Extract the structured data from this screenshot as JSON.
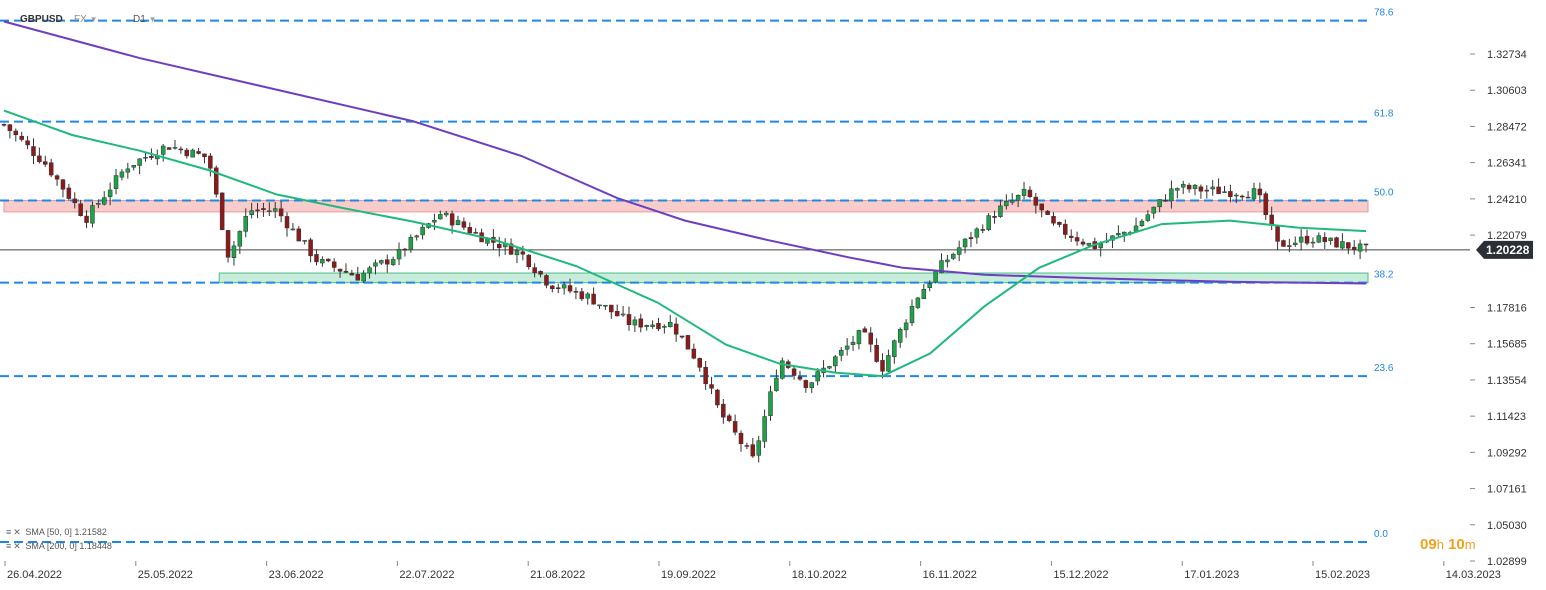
{
  "header": {
    "symbol": "GBPUSD",
    "market": "FX",
    "timeframe": "D1"
  },
  "indicators": [
    {
      "label": "SMA [50, 0]",
      "value": "1.21582",
      "color": "#1fb97d"
    },
    {
      "label": "SMA [200, 0]",
      "value": "1.18448",
      "color": "#6d3fc0"
    }
  ],
  "current_price": "1.20228",
  "timer": {
    "h": "09",
    "h_unit": "h",
    "m": "10",
    "m_unit": "m"
  },
  "colors": {
    "fib": "#1e88e5",
    "up": "#1fa14a",
    "down": "#8b1a1a",
    "resistance_zone": "#f9cccc",
    "support_zone": "#c7ecd9"
  },
  "chart_data": {
    "type": "candlestick",
    "y_ticks": [
      "1.32734",
      "1.30603",
      "1.28472",
      "1.26341",
      "1.24210",
      "1.22079",
      "1.20228",
      "1.17816",
      "1.15685",
      "1.13554",
      "1.11423",
      "1.09292",
      "1.07161",
      "1.05030",
      "1.02899"
    ],
    "x_ticks": [
      "26.04.2022",
      "25.05.2022",
      "23.06.2022",
      "22.07.2022",
      "21.08.2022",
      "19.09.2022",
      "18.10.2022",
      "16.11.2022",
      "15.12.2022",
      "17.01.2023",
      "15.02.2023",
      "14.03.2023"
    ],
    "ylim": [
      1.027,
      1.335
    ],
    "fib_levels": [
      {
        "label": "78.6",
        "price": 1.3335
      },
      {
        "label": "61.8",
        "price": 1.2757
      },
      {
        "label": "50.0",
        "price": 1.2305
      },
      {
        "label": "38.2",
        "price": 1.1835
      },
      {
        "label": "23.6",
        "price": 1.13
      },
      {
        "label": "0.0",
        "price": 1.035
      }
    ],
    "zones": [
      {
        "name": "resistance",
        "price_low": 1.224,
        "price_high": 1.2305,
        "start": 0,
        "end": 1368
      },
      {
        "name": "support",
        "price_low": 1.1835,
        "price_high": 1.189,
        "start": 0.158,
        "end": 1368
      }
    ],
    "current_price": 1.20228,
    "sma50": [
      [
        0.0,
        1.282
      ],
      [
        0.05,
        1.268
      ],
      [
        0.1,
        1.259
      ],
      [
        0.15,
        1.248
      ],
      [
        0.2,
        1.234
      ],
      [
        0.25,
        1.226
      ],
      [
        0.3,
        1.2185
      ],
      [
        0.36,
        1.208
      ],
      [
        0.42,
        1.193
      ],
      [
        0.48,
        1.172
      ],
      [
        0.53,
        1.148
      ],
      [
        0.57,
        1.137
      ],
      [
        0.61,
        1.132
      ],
      [
        0.645,
        1.13
      ],
      [
        0.68,
        1.143
      ],
      [
        0.72,
        1.17
      ],
      [
        0.76,
        1.192
      ],
      [
        0.8,
        1.205
      ],
      [
        0.85,
        1.217
      ],
      [
        0.9,
        1.219
      ],
      [
        0.95,
        1.215
      ],
      [
        1.0,
        1.213
      ]
    ],
    "sma200": [
      [
        0.0,
        1.333
      ],
      [
        0.1,
        1.312
      ],
      [
        0.2,
        1.294
      ],
      [
        0.3,
        1.276
      ],
      [
        0.38,
        1.256
      ],
      [
        0.45,
        1.232
      ],
      [
        0.5,
        1.219
      ],
      [
        0.56,
        1.208
      ],
      [
        0.62,
        1.198
      ],
      [
        0.66,
        1.192
      ],
      [
        0.72,
        1.188
      ],
      [
        0.8,
        1.186
      ],
      [
        0.9,
        1.184
      ],
      [
        1.0,
        1.183
      ]
    ],
    "price_path": [
      [
        0.0,
        1.274
      ],
      [
        0.03,
        1.252
      ],
      [
        0.06,
        1.22
      ],
      [
        0.09,
        1.25
      ],
      [
        0.12,
        1.262
      ],
      [
        0.15,
        1.255
      ],
      [
        0.165,
        1.198
      ],
      [
        0.18,
        1.225
      ],
      [
        0.2,
        1.225
      ],
      [
        0.23,
        1.196
      ],
      [
        0.26,
        1.187
      ],
      [
        0.29,
        1.2
      ],
      [
        0.32,
        1.223
      ],
      [
        0.35,
        1.21
      ],
      [
        0.38,
        1.2
      ],
      [
        0.4,
        1.183
      ],
      [
        0.43,
        1.175
      ],
      [
        0.46,
        1.16
      ],
      [
        0.49,
        1.16
      ],
      [
        0.51,
        1.138
      ],
      [
        0.525,
        1.11
      ],
      [
        0.55,
        1.082
      ],
      [
        0.57,
        1.14
      ],
      [
        0.59,
        1.125
      ],
      [
        0.61,
        1.14
      ],
      [
        0.63,
        1.155
      ],
      [
        0.645,
        1.135
      ],
      [
        0.67,
        1.175
      ],
      [
        0.69,
        1.195
      ],
      [
        0.71,
        1.21
      ],
      [
        0.73,
        1.225
      ],
      [
        0.75,
        1.235
      ],
      [
        0.77,
        1.216
      ],
      [
        0.8,
        1.204
      ],
      [
        0.83,
        1.215
      ],
      [
        0.86,
        1.238
      ],
      [
        0.89,
        1.236
      ],
      [
        0.92,
        1.235
      ],
      [
        0.935,
        1.205
      ],
      [
        0.96,
        1.209
      ],
      [
        1.0,
        1.2022
      ]
    ]
  }
}
